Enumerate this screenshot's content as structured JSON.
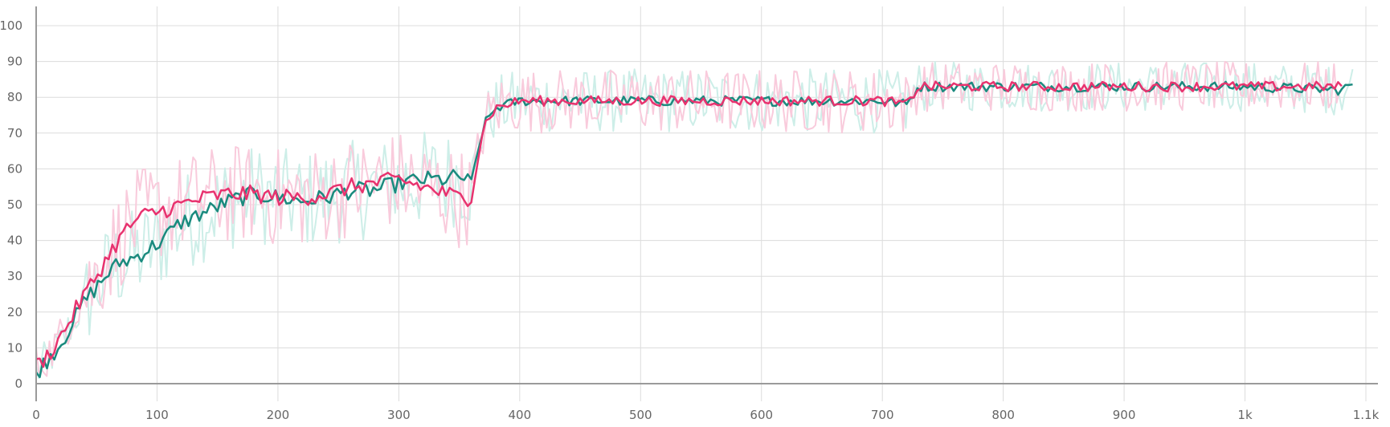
{
  "chart_data": {
    "type": "line",
    "title": "",
    "xlabel": "",
    "ylabel": "",
    "xlim": [
      0,
      1100
    ],
    "ylim": [
      -5,
      105
    ],
    "grid": true,
    "x_ticks": [
      {
        "value": 0,
        "label": "0"
      },
      {
        "value": 100,
        "label": "100"
      },
      {
        "value": 200,
        "label": "200"
      },
      {
        "value": 300,
        "label": "300"
      },
      {
        "value": 400,
        "label": "400"
      },
      {
        "value": 500,
        "label": "500"
      },
      {
        "value": 600,
        "label": "600"
      },
      {
        "value": 700,
        "label": "700"
      },
      {
        "value": 800,
        "label": "800"
      },
      {
        "value": 900,
        "label": "900"
      },
      {
        "value": 1000,
        "label": "1k"
      },
      {
        "value": 1100,
        "label": "1.1k"
      }
    ],
    "y_ticks": [
      {
        "value": 0,
        "label": "0"
      },
      {
        "value": 10,
        "label": "10"
      },
      {
        "value": 20,
        "label": "20"
      },
      {
        "value": 30,
        "label": "30"
      },
      {
        "value": 40,
        "label": "40"
      },
      {
        "value": 50,
        "label": "50"
      },
      {
        "value": 60,
        "label": "60"
      },
      {
        "value": 70,
        "label": "70"
      },
      {
        "value": 80,
        "label": "80"
      },
      {
        "value": 90,
        "label": "90"
      },
      {
        "value": 100,
        "label": "100"
      }
    ],
    "series": [
      {
        "color": "#1a8a7e",
        "raw_color": "#cdeee8",
        "x": [
          0,
          10,
          20,
          30,
          40,
          50,
          60,
          70,
          80,
          90,
          100,
          120,
          140,
          160,
          180,
          200,
          220,
          240,
          260,
          280,
          300,
          320,
          340,
          350,
          360,
          370,
          380,
          400,
          450,
          500,
          550,
          600,
          650,
          700,
          720,
          730,
          800,
          900,
          1000,
          1080,
          1090
        ],
        "values": [
          3,
          7,
          11,
          17,
          23,
          27,
          31,
          34,
          35,
          37,
          39,
          45,
          48,
          51,
          53,
          52,
          51,
          52,
          54,
          54,
          56,
          57,
          57,
          58,
          56,
          72,
          77,
          79,
          79,
          79,
          79,
          79,
          79,
          79,
          78,
          83,
          83,
          83,
          83,
          82,
          84
        ]
      },
      {
        "color": "#e8336f",
        "raw_color": "#f9cbdc",
        "x": [
          0,
          10,
          20,
          30,
          40,
          50,
          60,
          70,
          80,
          90,
          100,
          120,
          140,
          160,
          180,
          200,
          220,
          240,
          260,
          280,
          300,
          320,
          340,
          350,
          360,
          370,
          380,
          400,
          450,
          500,
          550,
          600,
          650,
          700,
          720,
          730,
          800,
          900,
          1000,
          1080
        ],
        "values": [
          5,
          8,
          13,
          19,
          25,
          30,
          36,
          41,
          45,
          47,
          48,
          50,
          52,
          53,
          53,
          52,
          52,
          53,
          55,
          56,
          57,
          55,
          53,
          52,
          52,
          72,
          77,
          79,
          79,
          79,
          79,
          79,
          79,
          79,
          78,
          83,
          83,
          83,
          83,
          83
        ]
      }
    ]
  }
}
